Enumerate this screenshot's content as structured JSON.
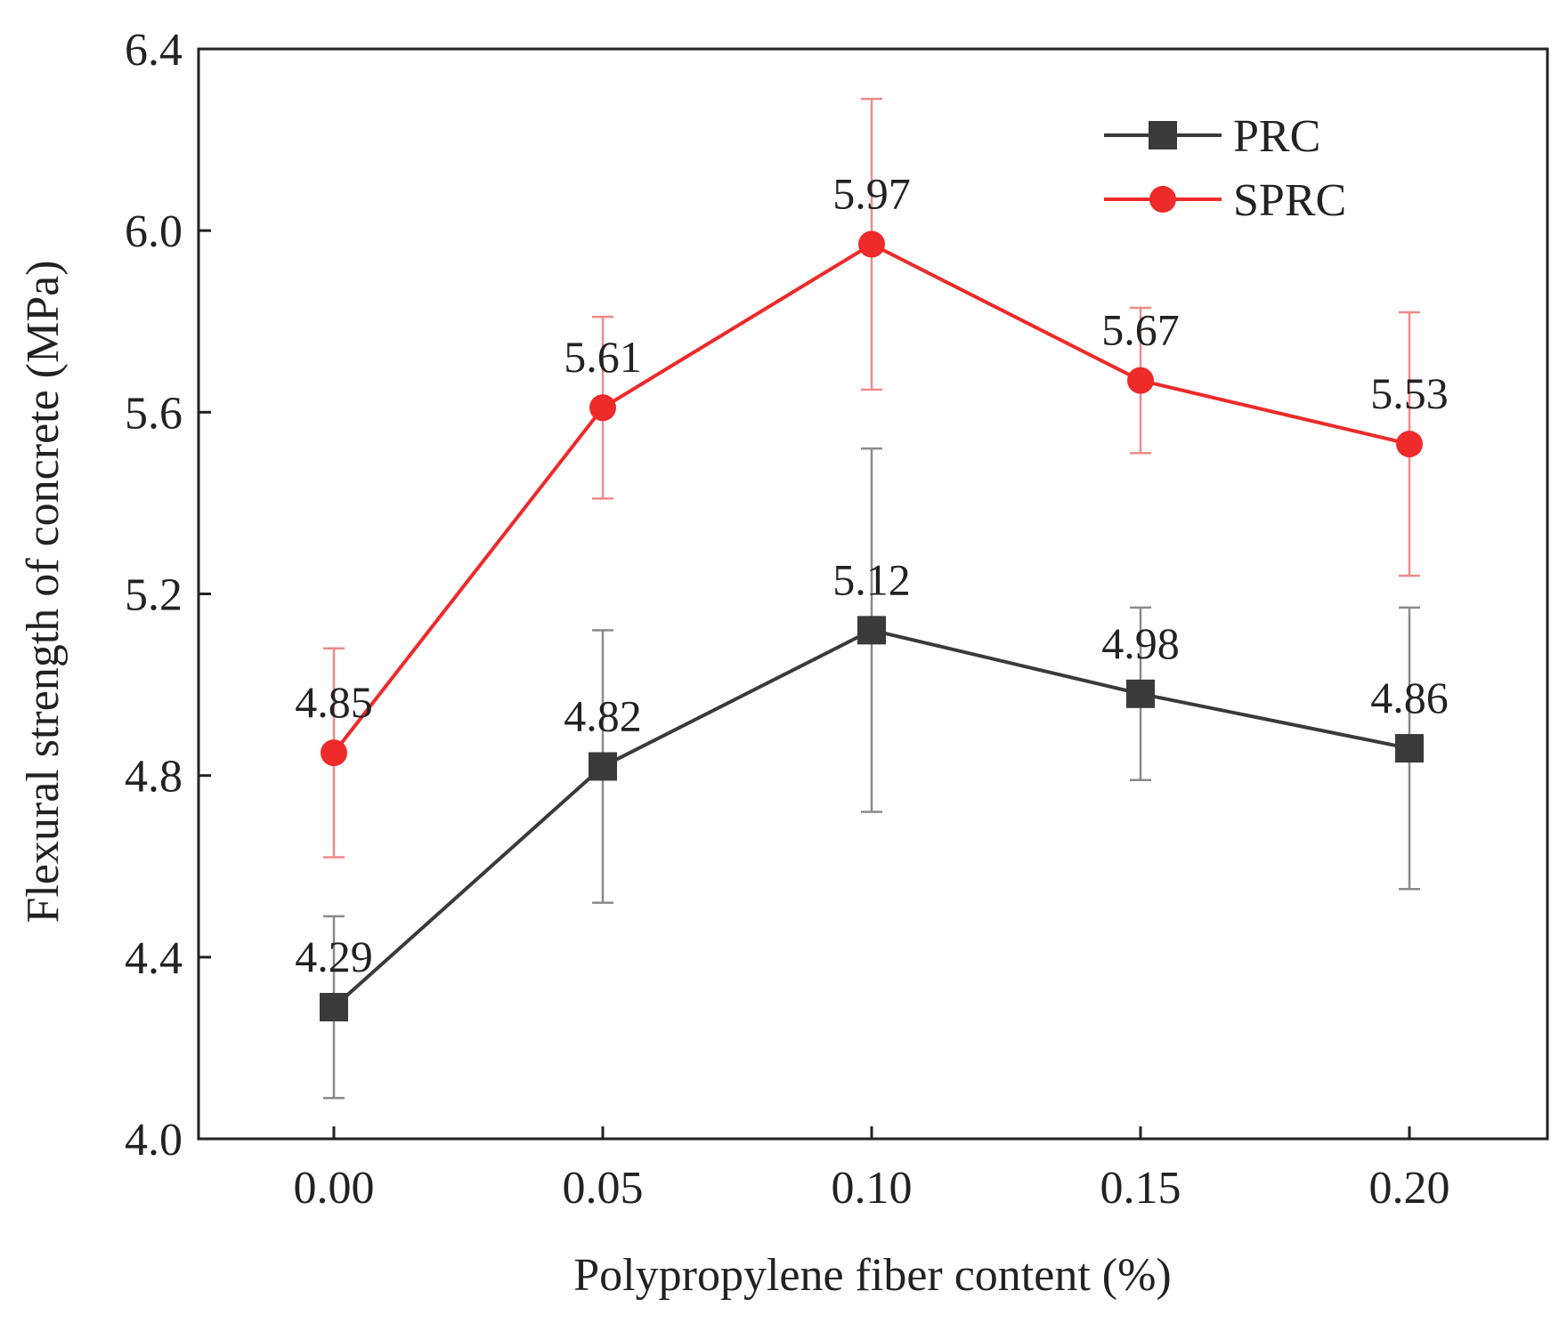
{
  "chart_data": {
    "type": "line",
    "x_categories": [
      "0.00",
      "0.05",
      "0.10",
      "0.15",
      "0.20"
    ],
    "x_values": [
      0.0,
      0.05,
      0.1,
      0.15,
      0.2
    ],
    "xlabel": "Polypropylene fiber content (%)",
    "ylabel": "Flexural strength of concrete (MPa)",
    "ylim": [
      4.0,
      6.4
    ],
    "y_ticks": [
      "4.0",
      "4.4",
      "4.8",
      "5.2",
      "5.6",
      "6.0",
      "6.4"
    ],
    "y_tick_values": [
      4.0,
      4.4,
      4.8,
      5.2,
      5.6,
      6.0,
      6.4
    ],
    "legend_position": "top-right",
    "grid": false,
    "series": [
      {
        "name": "PRC",
        "color": "#3a3a3a",
        "errcolor": "#8a8a8a",
        "marker": "square",
        "values": [
          4.29,
          4.82,
          5.12,
          4.98,
          4.86
        ],
        "labels": [
          "4.29",
          "4.82",
          "5.12",
          "4.98",
          "4.86"
        ],
        "error": [
          0.2,
          0.3,
          0.4,
          0.19,
          0.31
        ]
      },
      {
        "name": "SPRC",
        "color": "#ee2a2a",
        "errcolor": "#f08a8a",
        "marker": "circle",
        "values": [
          4.85,
          5.61,
          5.97,
          5.67,
          5.53
        ],
        "labels": [
          "4.85",
          "5.61",
          "5.97",
          "5.67",
          "5.53"
        ],
        "error": [
          0.23,
          0.2,
          0.32,
          0.16,
          0.29
        ]
      }
    ]
  }
}
